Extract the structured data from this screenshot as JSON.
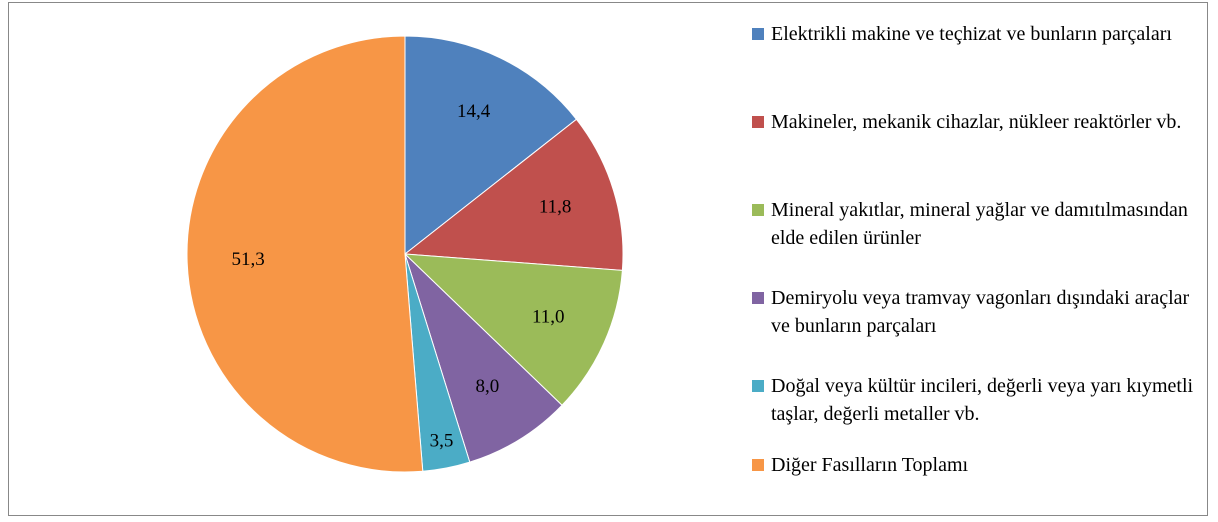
{
  "chart_data": {
    "type": "pie",
    "categories": [
      "Elektrikli makine ve teçhizat ve bunların parçaları",
      "Makineler, mekanik cihazlar, nükleer reaktörler vb.",
      "Mineral yakıtlar, mineral yağlar ve damıtılmasından elde edilen ürünler",
      "Demiryolu veya tramvay vagonları dışındaki araçlar ve bunların parçaları",
      "Doğal veya kültür incileri, değerli veya yarı kıymetli taşlar, değerli metaller vb.",
      "Diğer Fasılların Toplamı"
    ],
    "values": [
      14.4,
      11.8,
      11.0,
      8.0,
      3.5,
      51.3
    ],
    "value_labels": [
      "14,4",
      "11,8",
      "11,0",
      "8,0",
      "3,5",
      "51,3"
    ],
    "colors": [
      "#4f81bd",
      "#c0504d",
      "#9bbb59",
      "#8064a2",
      "#4bacc6",
      "#f79646"
    ],
    "legend": "right"
  }
}
